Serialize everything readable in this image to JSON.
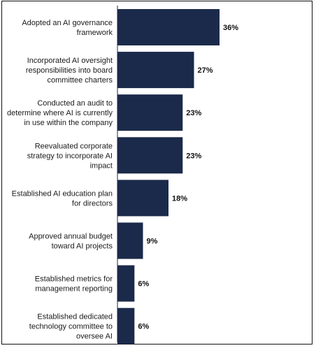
{
  "chart_data": {
    "type": "bar",
    "orientation": "horizontal",
    "title": "",
    "xlabel": "",
    "ylabel": "",
    "bar_color": "#1b2a4a",
    "xlim": [
      0,
      40
    ],
    "grid": false,
    "legend": "none",
    "categories": [
      [
        "Adopted an AI governance",
        "framework"
      ],
      [
        "Incorporated AI oversight",
        "responsibilities into board",
        "committee charters"
      ],
      [
        "Conducted an audit to",
        "determine where AI is currently",
        "in use within the company"
      ],
      [
        "Reevaluated corporate",
        "strategy to incorporate AI",
        "impact"
      ],
      [
        "Established AI education plan",
        "for directors"
      ],
      [
        "Approved annual budget",
        "toward AI projects"
      ],
      [
        "Established metrics for",
        "management reporting"
      ],
      [
        "Established dedicated",
        "technology committee to",
        "oversee AI"
      ]
    ],
    "values": [
      36,
      27,
      23,
      23,
      18,
      9,
      6,
      6
    ],
    "value_labels": [
      "36%",
      "27%",
      "23%",
      "23%",
      "18%",
      "9%",
      "6%",
      "6%"
    ]
  }
}
